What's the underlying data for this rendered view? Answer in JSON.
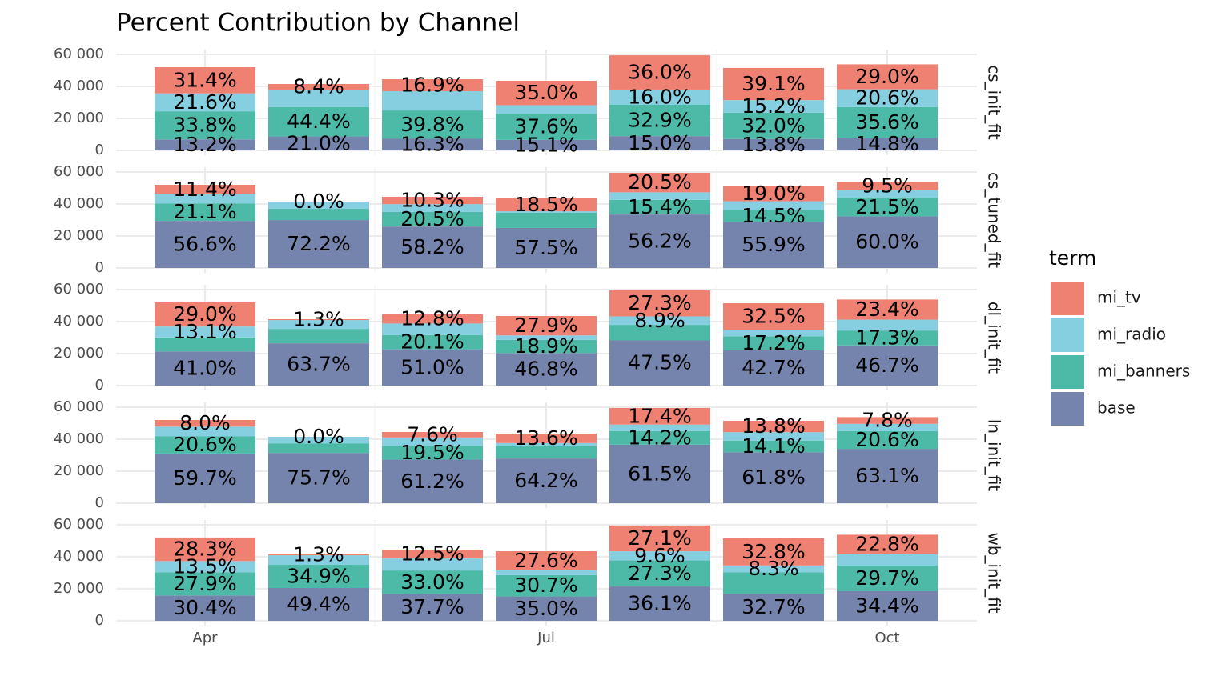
{
  "title": "Percent Contribution by Channel",
  "legend_title": "term",
  "chart_data": [
    {
      "type": "bar",
      "stacked": true,
      "facet": "cs_init_fit",
      "categories": [
        "Apr",
        null,
        null,
        "Jul",
        null,
        null,
        "Oct"
      ],
      "ylim": [
        -3000,
        63000
      ],
      "yticks": [
        0,
        {
          "value": 20000,
          "label": "20 000"
        },
        {
          "value": 40000,
          "label": "40 000"
        },
        {
          "value": 60000,
          "label": "60 000"
        }
      ],
      "grid": true,
      "series": [
        {
          "name": "base",
          "color": "#7584ac",
          "values": [
            6864,
            8715,
            7254,
            6569,
            8925,
            7107,
            7962
          ],
          "value_labels": [
            "13.2%",
            "21.0%",
            "16.3%",
            "15.1%",
            "15.0%",
            "13.8%",
            "14.8%"
          ]
        },
        {
          "name": "mi_banners",
          "color": "#4dbaa8",
          "values": [
            17576,
            18426,
            17711,
            16356,
            19576,
            16480,
            19153
          ],
          "value_labels": [
            "33.8%",
            "44.4%",
            "39.8%",
            "37.6%",
            "32.9%",
            "32.0%",
            "35.6%"
          ]
        },
        {
          "name": "mi_radio",
          "color": "#86cfe1",
          "values": [
            11232,
            10873,
            12015,
            5351,
            9520,
            7828,
            11083
          ],
          "value_labels": [
            "21.6%",
            null,
            null,
            null,
            "16.0%",
            "15.2%",
            "20.6%"
          ]
        },
        {
          "name": "mi_tv",
          "color": "#ef8172",
          "values": [
            16328,
            3486,
            7521,
            15225,
            21420,
            20137,
            15602
          ],
          "value_labels": [
            "31.4%",
            "8.4%",
            "16.9%",
            "35.0%",
            "36.0%",
            "39.1%",
            "29.0%"
          ]
        }
      ]
    },
    {
      "type": "bar",
      "stacked": true,
      "facet": "cs_tuned_fit",
      "categories": [
        "Apr",
        null,
        null,
        "Jul",
        null,
        null,
        "Oct"
      ],
      "ylim": [
        -3000,
        63000
      ],
      "yticks": [
        0,
        {
          "value": 20000,
          "label": "20 000"
        },
        {
          "value": 40000,
          "label": "40 000"
        },
        {
          "value": 60000,
          "label": "60 000"
        }
      ],
      "grid": true,
      "series": [
        {
          "name": "base",
          "color": "#7584ac",
          "values": [
            29432,
            29963,
            25899,
            25013,
            33439,
            28789,
            32280
          ],
          "value_labels": [
            "56.6%",
            "72.2%",
            "58.2%",
            "57.5%",
            "56.2%",
            "55.9%",
            "60.0%"
          ]
        },
        {
          "name": "mi_banners",
          "color": "#4dbaa8",
          "values": [
            10972,
            7014,
            9123,
            9483,
            9163,
            7468,
            11567
          ],
          "value_labels": [
            "21.1%",
            null,
            "20.5%",
            null,
            "15.4%",
            "14.5%",
            "21.5%"
          ]
        },
        {
          "name": "mi_radio",
          "color": "#86cfe1",
          "values": [
            5668,
            4524,
            4895,
            957,
            4701,
            5459,
            4842
          ],
          "value_labels": [
            null,
            null,
            null,
            null,
            null,
            null,
            null
          ]
        },
        {
          "name": "mi_tv",
          "color": "#ef8172",
          "values": [
            5928,
            0,
            4584,
            8048,
            12198,
            9785,
            5111
          ],
          "value_labels": [
            "11.4%",
            "0.0%",
            "10.3%",
            "18.5%",
            "20.5%",
            "19.0%",
            "9.5%"
          ]
        }
      ]
    },
    {
      "type": "bar",
      "stacked": true,
      "facet": "dl_init_fit",
      "categories": [
        "Apr",
        null,
        null,
        "Jul",
        null,
        null,
        "Oct"
      ],
      "ylim": [
        -3000,
        63000
      ],
      "yticks": [
        0,
        {
          "value": 20000,
          "label": "20 000"
        },
        {
          "value": 40000,
          "label": "40 000"
        },
        {
          "value": 60000,
          "label": "60 000"
        }
      ],
      "grid": true,
      "series": [
        {
          "name": "base",
          "color": "#7584ac",
          "values": [
            21320,
            26436,
            22695,
            20358,
            28263,
            21991,
            25125
          ],
          "value_labels": [
            "41.0%",
            "63.7%",
            "51.0%",
            "46.8%",
            "47.5%",
            "42.7%",
            "46.7%"
          ]
        },
        {
          "name": "mi_banners",
          "color": "#4dbaa8",
          "values": [
            8788,
            9006,
            8945,
            8222,
            9699,
            8858,
            9307
          ],
          "value_labels": [
            null,
            null,
            "20.1%",
            "18.9%",
            null,
            "17.2%",
            "17.3%"
          ]
        },
        {
          "name": "mi_radio",
          "color": "#86cfe1",
          "values": [
            6812,
            5520,
            7165,
            2784,
            5296,
            3914,
            6779
          ],
          "value_labels": [
            "13.1%",
            null,
            null,
            null,
            "8.9%",
            null,
            null
          ]
        },
        {
          "name": "mi_tv",
          "color": "#ef8172",
          "values": [
            15080,
            540,
            5696,
            12137,
            16244,
            16738,
            12589
          ],
          "value_labels": [
            "29.0%",
            "1.3%",
            "12.8%",
            "27.9%",
            "27.3%",
            "32.5%",
            "23.4%"
          ]
        }
      ]
    },
    {
      "type": "bar",
      "stacked": true,
      "facet": "ln_init_fit",
      "categories": [
        "Apr",
        null,
        null,
        "Jul",
        null,
        null,
        "Oct"
      ],
      "ylim": [
        -3000,
        63000
      ],
      "yticks": [
        0,
        {
          "value": 20000,
          "label": "20 000"
        },
        {
          "value": 40000,
          "label": "40 000"
        },
        {
          "value": 60000,
          "label": "60 000"
        }
      ],
      "grid": true,
      "series": [
        {
          "name": "base",
          "color": "#7584ac",
          "values": [
            31044,
            31416,
            27234,
            27927,
            36593,
            31827,
            33948
          ],
          "value_labels": [
            "59.7%",
            "75.7%",
            "61.2%",
            "64.2%",
            "61.5%",
            "61.8%",
            "63.1%"
          ]
        },
        {
          "name": "mi_banners",
          "color": "#4dbaa8",
          "values": [
            10712,
            6018,
            8678,
            8004,
            8449,
            7262,
            11083
          ],
          "value_labels": [
            "20.6%",
            null,
            "19.5%",
            null,
            "14.2%",
            "14.1%",
            "20.6%"
          ]
        },
        {
          "name": "mi_radio",
          "color": "#86cfe1",
          "values": [
            6084,
            4067,
            5207,
            1653,
            4106,
            5305,
            4573
          ],
          "value_labels": [
            null,
            null,
            null,
            null,
            null,
            null,
            null
          ]
        },
        {
          "name": "mi_tv",
          "color": "#ef8172",
          "values": [
            4160,
            0,
            3382,
            5916,
            10353,
            7107,
            4196
          ],
          "value_labels": [
            "8.0%",
            "0.0%",
            "7.6%",
            "13.6%",
            "17.4%",
            "13.8%",
            "7.8%"
          ]
        }
      ]
    },
    {
      "type": "bar",
      "stacked": true,
      "facet": "wb_init_fit",
      "categories": [
        "Apr",
        null,
        null,
        "Jul",
        null,
        null,
        "Oct"
      ],
      "ylim": [
        -3000,
        63000
      ],
      "yticks": [
        0,
        {
          "value": 20000,
          "label": "20 000"
        },
        {
          "value": 40000,
          "label": "40 000"
        },
        {
          "value": 60000,
          "label": "60 000"
        }
      ],
      "grid": true,
      "series": [
        {
          "name": "base",
          "color": "#7584ac",
          "values": [
            15808,
            20501,
            16777,
            15225,
            21480,
            16841,
            18507
          ],
          "value_labels": [
            "30.4%",
            "49.4%",
            "37.7%",
            "35.0%",
            "36.1%",
            "32.7%",
            "34.4%"
          ]
        },
        {
          "name": "mi_banners",
          "color": "#4dbaa8",
          "values": [
            14508,
            14484,
            14685,
            13355,
            16244,
            13493,
            15979
          ],
          "value_labels": [
            "27.9%",
            "34.9%",
            "33.0%",
            "30.7%",
            "27.3%",
            null,
            "29.7%"
          ]
        },
        {
          "name": "mi_radio",
          "color": "#86cfe1",
          "values": [
            7020,
            5976,
            7476,
            2915,
            5712,
            4275,
            7048
          ],
          "value_labels": [
            "13.5%",
            null,
            null,
            null,
            "9.6%",
            "8.3%",
            null
          ]
        },
        {
          "name": "mi_tv",
          "color": "#ef8172",
          "values": [
            14716,
            540,
            5563,
            12006,
            16125,
            16892,
            12266
          ],
          "value_labels": [
            "28.3%",
            "1.3%",
            "12.5%",
            "27.6%",
            "27.1%",
            "32.8%",
            "22.8%"
          ]
        }
      ]
    }
  ]
}
